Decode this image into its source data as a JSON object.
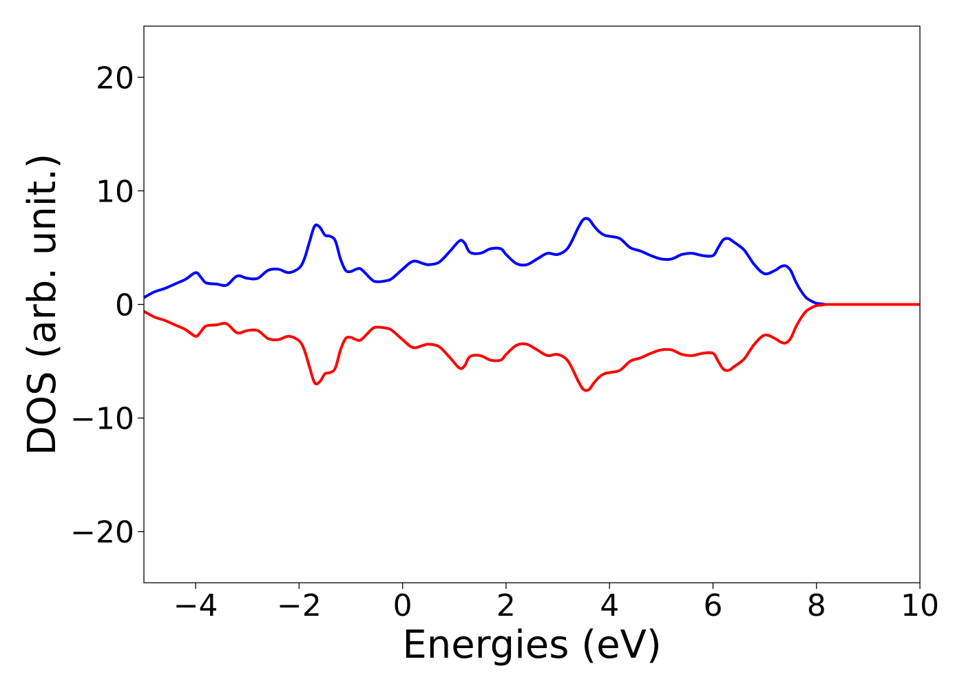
{
  "chart_data": {
    "type": "line",
    "title": "",
    "xlabel": "Energies (eV)",
    "ylabel": "DOS (arb. unit.)",
    "xlim": [
      -5,
      10
    ],
    "ylim": [
      -24.5,
      24.5
    ],
    "xticks": [
      -4,
      -2,
      0,
      2,
      4,
      6,
      8,
      10
    ],
    "xtick_labels": [
      "−4",
      "−2",
      "0",
      "2",
      "4",
      "6",
      "8",
      "10"
    ],
    "yticks": [
      -20,
      -10,
      0,
      10,
      20
    ],
    "ytick_labels": [
      "−20",
      "−10",
      "0",
      "10",
      "20"
    ],
    "grid": false,
    "legend": "none",
    "series": [
      {
        "color": "#0000ff",
        "x": [
          -5.0,
          -4.8,
          -4.6,
          -4.4,
          -4.2,
          -4.0,
          -3.9,
          -3.8,
          -3.6,
          -3.4,
          -3.2,
          -3.0,
          -2.8,
          -2.6,
          -2.4,
          -2.2,
          -2.0,
          -1.9,
          -1.8,
          -1.7,
          -1.6,
          -1.5,
          -1.4,
          -1.3,
          -1.2,
          -1.1,
          -1.0,
          -0.9,
          -0.8,
          -0.6,
          -0.5,
          -0.3,
          -0.2,
          0.0,
          0.2,
          0.4,
          0.5,
          0.7,
          0.9,
          1.1,
          1.2,
          1.3,
          1.5,
          1.7,
          1.9,
          2.0,
          2.2,
          2.4,
          2.6,
          2.8,
          3.0,
          3.2,
          3.4,
          3.5,
          3.6,
          3.7,
          3.8,
          3.9,
          4.0,
          4.2,
          4.4,
          4.6,
          4.8,
          5.0,
          5.2,
          5.4,
          5.6,
          5.8,
          6.0,
          6.1,
          6.2,
          6.3,
          6.4,
          6.6,
          6.8,
          7.0,
          7.2,
          7.3,
          7.4,
          7.5,
          7.6,
          7.7,
          7.8,
          7.9,
          8.0,
          8.1,
          8.2,
          8.5,
          9.0,
          9.5,
          10.0
        ],
        "y": [
          0.6,
          1.1,
          1.4,
          1.8,
          2.2,
          2.8,
          2.4,
          1.9,
          1.8,
          1.7,
          2.5,
          2.3,
          2.3,
          3.0,
          3.1,
          2.8,
          3.2,
          4.0,
          5.5,
          6.9,
          6.8,
          6.1,
          6.0,
          5.6,
          4.0,
          3.0,
          2.9,
          3.1,
          3.1,
          2.2,
          2.0,
          2.1,
          2.3,
          3.1,
          3.8,
          3.6,
          3.5,
          3.7,
          4.6,
          5.6,
          5.4,
          4.6,
          4.5,
          4.9,
          4.9,
          4.4,
          3.6,
          3.5,
          4.0,
          4.5,
          4.4,
          5.0,
          6.8,
          7.5,
          7.5,
          6.9,
          6.4,
          6.1,
          6.0,
          5.8,
          5.0,
          4.7,
          4.3,
          4.0,
          4.0,
          4.4,
          4.5,
          4.3,
          4.3,
          5.0,
          5.7,
          5.8,
          5.5,
          4.8,
          3.5,
          2.7,
          3.0,
          3.3,
          3.4,
          3.0,
          2.0,
          1.2,
          0.6,
          0.3,
          0.1,
          0.05,
          0.0,
          0.0,
          0.0,
          0.0,
          0.0
        ]
      },
      {
        "color": "#ff0000",
        "x": [
          -5.0,
          -4.8,
          -4.6,
          -4.4,
          -4.2,
          -4.0,
          -3.9,
          -3.8,
          -3.6,
          -3.4,
          -3.2,
          -3.0,
          -2.8,
          -2.6,
          -2.4,
          -2.2,
          -2.0,
          -1.9,
          -1.8,
          -1.7,
          -1.6,
          -1.5,
          -1.4,
          -1.3,
          -1.2,
          -1.1,
          -1.0,
          -0.9,
          -0.8,
          -0.6,
          -0.5,
          -0.3,
          -0.2,
          0.0,
          0.2,
          0.4,
          0.5,
          0.7,
          0.9,
          1.1,
          1.2,
          1.3,
          1.5,
          1.7,
          1.9,
          2.0,
          2.2,
          2.4,
          2.6,
          2.8,
          3.0,
          3.2,
          3.4,
          3.5,
          3.6,
          3.7,
          3.8,
          3.9,
          4.0,
          4.2,
          4.4,
          4.6,
          4.8,
          5.0,
          5.2,
          5.4,
          5.6,
          5.8,
          6.0,
          6.1,
          6.2,
          6.3,
          6.4,
          6.6,
          6.8,
          7.0,
          7.2,
          7.3,
          7.4,
          7.5,
          7.6,
          7.7,
          7.8,
          7.9,
          8.0,
          8.1,
          8.2,
          8.5,
          9.0,
          9.5,
          10.0
        ],
        "y": [
          -0.6,
          -1.1,
          -1.4,
          -1.8,
          -2.2,
          -2.8,
          -2.4,
          -1.9,
          -1.8,
          -1.7,
          -2.5,
          -2.3,
          -2.3,
          -3.0,
          -3.1,
          -2.8,
          -3.2,
          -4.0,
          -5.5,
          -6.9,
          -6.8,
          -6.1,
          -6.0,
          -5.6,
          -4.0,
          -3.0,
          -2.9,
          -3.1,
          -3.1,
          -2.2,
          -2.0,
          -2.1,
          -2.3,
          -3.1,
          -3.8,
          -3.6,
          -3.5,
          -3.7,
          -4.6,
          -5.6,
          -5.4,
          -4.6,
          -4.5,
          -4.9,
          -4.9,
          -4.4,
          -3.6,
          -3.5,
          -4.0,
          -4.5,
          -4.4,
          -5.0,
          -6.8,
          -7.5,
          -7.5,
          -6.9,
          -6.4,
          -6.1,
          -6.0,
          -5.8,
          -5.0,
          -4.7,
          -4.3,
          -4.0,
          -4.0,
          -4.4,
          -4.5,
          -4.3,
          -4.3,
          -5.0,
          -5.7,
          -5.8,
          -5.5,
          -4.8,
          -3.5,
          -2.7,
          -3.0,
          -3.3,
          -3.4,
          -3.0,
          -2.0,
          -1.2,
          -0.6,
          -0.3,
          -0.1,
          -0.05,
          0.0,
          0.0,
          0.0,
          0.0,
          0.0
        ]
      }
    ]
  }
}
